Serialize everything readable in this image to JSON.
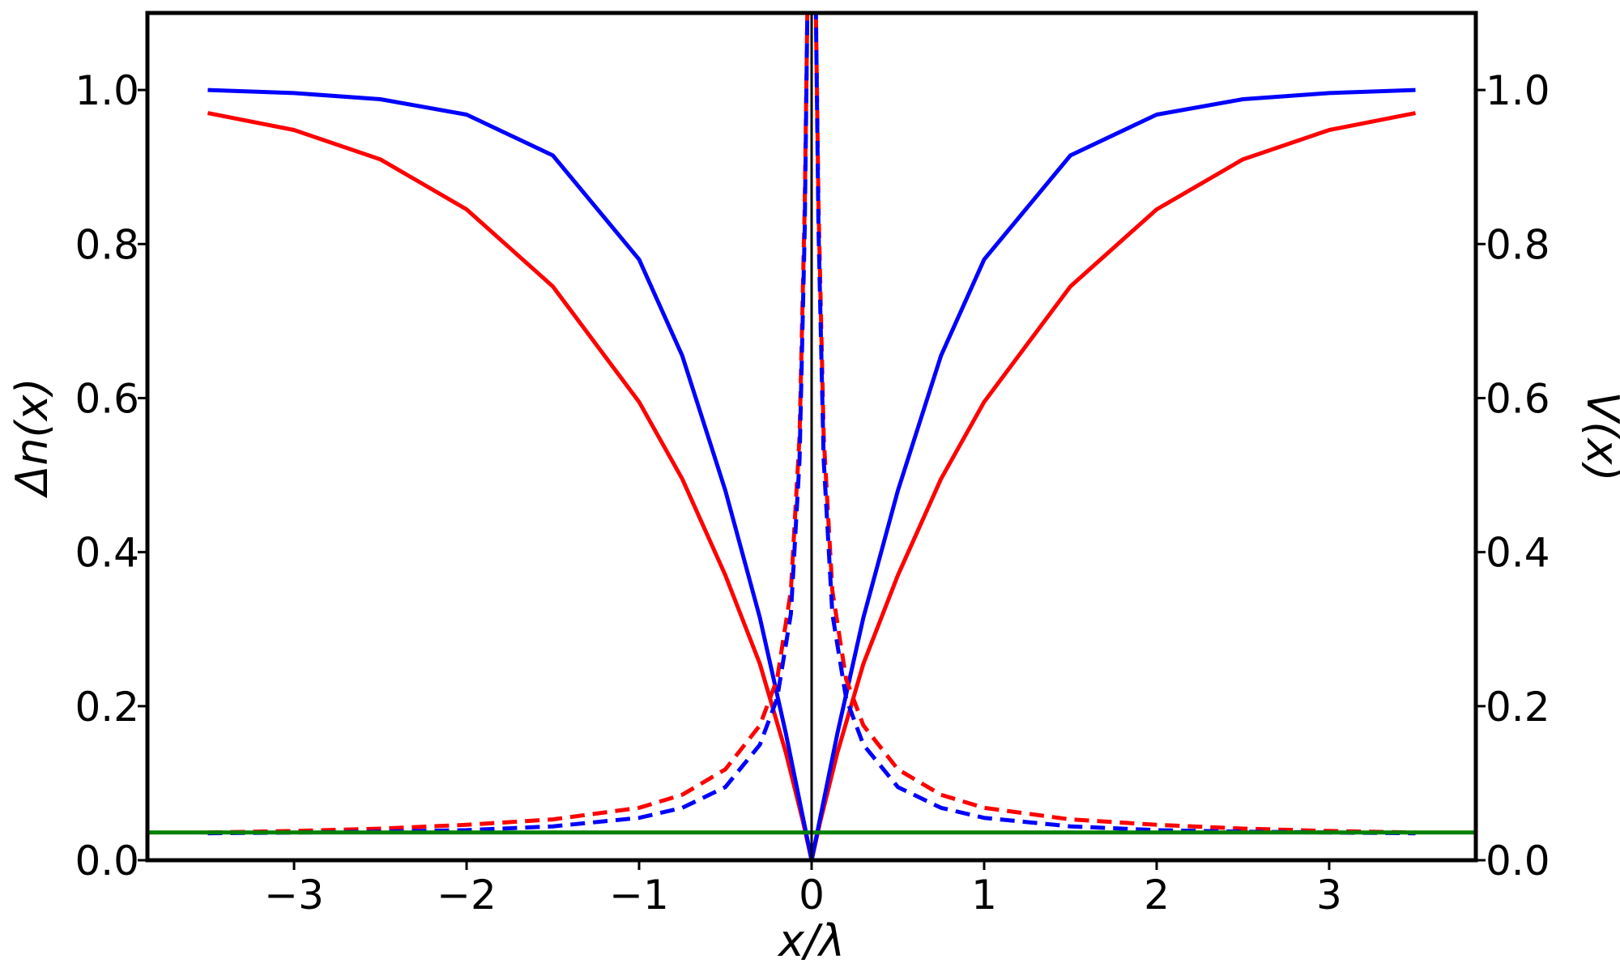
{
  "chart_data": {
    "type": "line",
    "title": "",
    "xlabel": "x/λ",
    "ylabel_left": "Δn(x)",
    "ylabel_right": "V(x)",
    "xlim": [
      -3.85,
      3.85
    ],
    "ylim": [
      0.0,
      1.1
    ],
    "y2lim": [
      0.0,
      1.1
    ],
    "x_ticks": [
      -3,
      -2,
      -1,
      0,
      1,
      2,
      3
    ],
    "x_tick_labels": [
      "−3",
      "−2",
      "−1",
      "0",
      "1",
      "2",
      "3"
    ],
    "y_ticks": [
      0.0,
      0.2,
      0.4,
      0.6,
      0.8,
      1.0
    ],
    "y_tick_labels": [
      "0.0",
      "0.2",
      "0.4",
      "0.6",
      "0.8",
      "1.0"
    ],
    "y2_ticks": [
      0.0,
      0.2,
      0.4,
      0.6,
      0.8,
      1.0
    ],
    "y2_tick_labels": [
      "0.0",
      "0.2",
      "0.4",
      "0.6",
      "0.8",
      "1.0"
    ],
    "grid": false,
    "legend": "none",
    "vertical_line_x": 0,
    "series": [
      {
        "color": "#ff0000",
        "style": "solid",
        "axis": "left",
        "points": [
          [
            -3.5,
            0.97
          ],
          [
            -3.0,
            0.948
          ],
          [
            -2.5,
            0.91
          ],
          [
            -2.0,
            0.845
          ],
          [
            -1.5,
            0.745
          ],
          [
            -1.0,
            0.595
          ],
          [
            -0.75,
            0.495
          ],
          [
            -0.5,
            0.37
          ],
          [
            -0.3,
            0.255
          ],
          [
            -0.15,
            0.14
          ],
          [
            -0.05,
            0.05
          ],
          [
            0,
            0.0
          ],
          [
            0.05,
            0.05
          ],
          [
            0.15,
            0.14
          ],
          [
            0.3,
            0.255
          ],
          [
            0.5,
            0.37
          ],
          [
            0.75,
            0.495
          ],
          [
            1.0,
            0.595
          ],
          [
            1.5,
            0.745
          ],
          [
            2.0,
            0.845
          ],
          [
            2.5,
            0.91
          ],
          [
            3.0,
            0.948
          ],
          [
            3.5,
            0.97
          ]
        ]
      },
      {
        "color": "#0000ff",
        "style": "solid",
        "axis": "left",
        "points": [
          [
            -3.5,
            1.0
          ],
          [
            -3.0,
            0.996
          ],
          [
            -2.5,
            0.988
          ],
          [
            -2.0,
            0.968
          ],
          [
            -1.5,
            0.915
          ],
          [
            -1.0,
            0.78
          ],
          [
            -0.75,
            0.655
          ],
          [
            -0.5,
            0.48
          ],
          [
            -0.3,
            0.315
          ],
          [
            -0.15,
            0.165
          ],
          [
            -0.05,
            0.055
          ],
          [
            0,
            0.0
          ],
          [
            0.05,
            0.055
          ],
          [
            0.15,
            0.165
          ],
          [
            0.3,
            0.315
          ],
          [
            0.5,
            0.48
          ],
          [
            0.75,
            0.655
          ],
          [
            1.0,
            0.78
          ],
          [
            1.5,
            0.915
          ],
          [
            2.0,
            0.968
          ],
          [
            2.5,
            0.988
          ],
          [
            3.0,
            0.996
          ],
          [
            3.5,
            1.0
          ]
        ]
      },
      {
        "color": "#ff0000",
        "style": "dashed",
        "axis": "right",
        "points": [
          [
            -3.5,
            0.036
          ],
          [
            -3.0,
            0.038
          ],
          [
            -2.5,
            0.041
          ],
          [
            -2.0,
            0.046
          ],
          [
            -1.5,
            0.053
          ],
          [
            -1.0,
            0.068
          ],
          [
            -0.75,
            0.085
          ],
          [
            -0.5,
            0.118
          ],
          [
            -0.3,
            0.175
          ],
          [
            -0.2,
            0.235
          ],
          [
            -0.12,
            0.35
          ],
          [
            -0.07,
            0.55
          ],
          [
            -0.04,
            0.85
          ],
          [
            -0.025,
            1.1
          ],
          [
            0.025,
            1.1
          ],
          [
            0.04,
            0.85
          ],
          [
            0.07,
            0.55
          ],
          [
            0.12,
            0.35
          ],
          [
            0.2,
            0.235
          ],
          [
            0.3,
            0.175
          ],
          [
            0.5,
            0.118
          ],
          [
            0.75,
            0.085
          ],
          [
            1.0,
            0.068
          ],
          [
            1.5,
            0.053
          ],
          [
            2.0,
            0.046
          ],
          [
            2.5,
            0.041
          ],
          [
            3.0,
            0.038
          ],
          [
            3.5,
            0.036
          ]
        ]
      },
      {
        "color": "#0000ff",
        "style": "dashed",
        "axis": "right",
        "points": [
          [
            -3.5,
            0.035
          ],
          [
            -3.0,
            0.036
          ],
          [
            -2.5,
            0.037
          ],
          [
            -2.0,
            0.039
          ],
          [
            -1.5,
            0.044
          ],
          [
            -1.0,
            0.055
          ],
          [
            -0.75,
            0.068
          ],
          [
            -0.5,
            0.095
          ],
          [
            -0.3,
            0.15
          ],
          [
            -0.2,
            0.21
          ],
          [
            -0.12,
            0.32
          ],
          [
            -0.07,
            0.52
          ],
          [
            -0.04,
            0.82
          ],
          [
            -0.025,
            1.1
          ],
          [
            0.025,
            1.1
          ],
          [
            0.04,
            0.82
          ],
          [
            0.07,
            0.52
          ],
          [
            0.12,
            0.32
          ],
          [
            0.2,
            0.21
          ],
          [
            0.3,
            0.15
          ],
          [
            0.5,
            0.095
          ],
          [
            0.75,
            0.068
          ],
          [
            1.0,
            0.055
          ],
          [
            1.5,
            0.044
          ],
          [
            2.0,
            0.039
          ],
          [
            2.5,
            0.037
          ],
          [
            3.0,
            0.036
          ],
          [
            3.5,
            0.035
          ]
        ]
      },
      {
        "color": "#008000",
        "style": "solid",
        "axis": "right",
        "points": [
          [
            -3.85,
            0.036
          ],
          [
            3.85,
            0.036
          ]
        ]
      }
    ]
  }
}
